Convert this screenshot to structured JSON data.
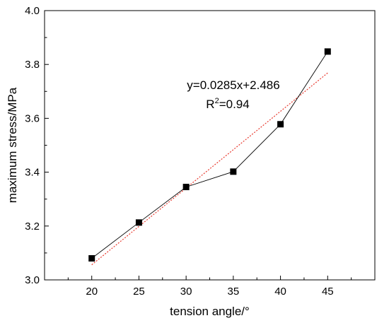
{
  "chart_data": {
    "type": "line",
    "xlabel": "tension angle/°",
    "ylabel": "maximum stress/MPa",
    "x": [
      20,
      25,
      30,
      35,
      40,
      45
    ],
    "series": [
      {
        "values": [
          3.08,
          3.213,
          3.345,
          3.402,
          3.578,
          3.848
        ],
        "color": "#000000",
        "marker": "square"
      }
    ],
    "fit": {
      "slope": 0.0285,
      "intercept": 2.486,
      "style": "dotted",
      "color": "#e83a2f",
      "equation": "y=0.0285x+2.486",
      "r2_prefix": "R",
      "r2_sup": "2",
      "r2_value": "=0.94"
    },
    "xlim": [
      15,
      50
    ],
    "ylim": [
      3.0,
      4.0
    ],
    "xticks": [
      "20",
      "25",
      "30",
      "35",
      "40",
      "45"
    ],
    "yticks": [
      "3.0",
      "3.2",
      "3.4",
      "3.6",
      "3.8",
      "4.0"
    ],
    "grid": false
  }
}
